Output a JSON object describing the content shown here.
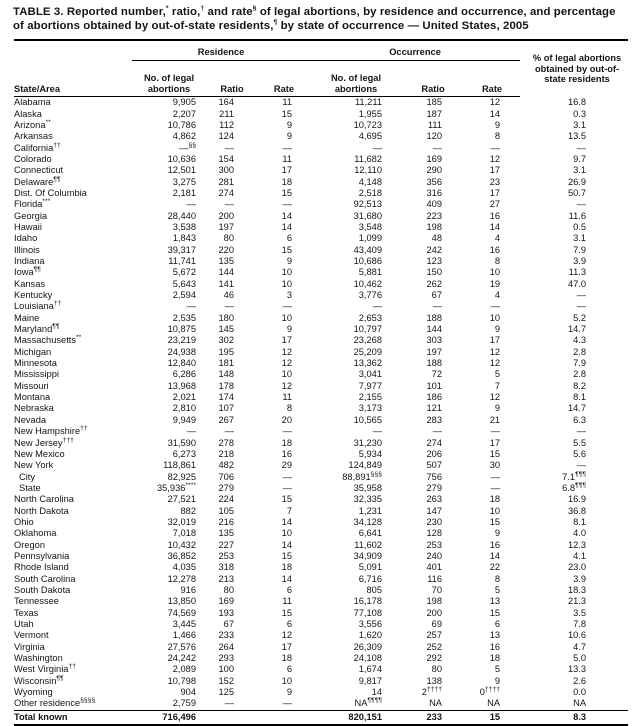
{
  "page": {
    "title": "TABLE 3. Reported number,^{*} ratio,^{†} and rate^{§} of legal abortions, by residence and occurrence, and percentage of abortions obtained by out-of-state residents,^{¶} by state of occurrence — United States, 2005"
  },
  "table": {
    "groups": {
      "residence": "Residence",
      "occurrence": "Occurrence",
      "pct": "% of legal abortions obtained by out-of-state residents"
    },
    "headers": {
      "state": "State/Area",
      "no_abortions": "No. of legal abortions",
      "ratio": "Ratio",
      "rate": "Rate"
    },
    "rows": [
      {
        "state": "Alabama",
        "cells": [
          "9,905",
          "164",
          "11",
          "11,211",
          "185",
          "12",
          "16.8"
        ]
      },
      {
        "state": "Alaska",
        "cells": [
          "2,207",
          "211",
          "15",
          "1,955",
          "187",
          "14",
          "0.3"
        ]
      },
      {
        "state": "Arizona^{**}",
        "cells": [
          "10,786",
          "112",
          "9",
          "10,723",
          "111",
          "9",
          "3.1"
        ]
      },
      {
        "state": "Arkansas",
        "cells": [
          "4,862",
          "124",
          "9",
          "4,695",
          "120",
          "8",
          "13.5"
        ]
      },
      {
        "state": "California^{††}",
        "cells": [
          "—^{§§}",
          "—",
          "—",
          "—",
          "—",
          "—",
          "—"
        ]
      },
      {
        "state": "Colorado",
        "cells": [
          "10,636",
          "154",
          "11",
          "11,682",
          "169",
          "12",
          "9.7"
        ]
      },
      {
        "state": "Connecticut",
        "cells": [
          "12,501",
          "300",
          "17",
          "12,110",
          "290",
          "17",
          "3.1"
        ]
      },
      {
        "state": "Delaware^{¶¶}",
        "cells": [
          "3,275",
          "281",
          "18",
          "4,148",
          "356",
          "23",
          "26.9"
        ]
      },
      {
        "state": "Dist. Of Columbia",
        "cells": [
          "2,181",
          "274",
          "15",
          "2,518",
          "316",
          "17",
          "50.7"
        ]
      },
      {
        "state": "Florida^{***}",
        "cells": [
          "—",
          "—",
          "—",
          "92,513",
          "409",
          "27",
          "—"
        ]
      },
      {
        "state": "Georgia",
        "cells": [
          "28,440",
          "200",
          "14",
          "31,680",
          "223",
          "16",
          "11.6"
        ]
      },
      {
        "state": "Hawaii",
        "cells": [
          "3,538",
          "197",
          "14",
          "3,548",
          "198",
          "14",
          "0.5"
        ]
      },
      {
        "state": "Idaho",
        "cells": [
          "1,843",
          "80",
          "6",
          "1,099",
          "48",
          "4",
          "3.1"
        ]
      },
      {
        "state": "Illinois",
        "cells": [
          "39,317",
          "220",
          "15",
          "43,409",
          "242",
          "16",
          "7.9"
        ]
      },
      {
        "state": "Indiana",
        "cells": [
          "11,741",
          "135",
          "9",
          "10,686",
          "123",
          "8",
          "3.9"
        ]
      },
      {
        "state": "Iowa^{¶¶}",
        "cells": [
          "5,672",
          "144",
          "10",
          "5,881",
          "150",
          "10",
          "11.3"
        ]
      },
      {
        "state": "Kansas",
        "cells": [
          "5,643",
          "141",
          "10",
          "10,462",
          "262",
          "19",
          "47.0"
        ]
      },
      {
        "state": "Kentucky",
        "cells": [
          "2,594",
          "46",
          "3",
          "3,776",
          "67",
          "4",
          "—"
        ]
      },
      {
        "state": "Louisiana^{††}",
        "cells": [
          "—",
          "—",
          "—",
          "—",
          "—",
          "—",
          "—"
        ]
      },
      {
        "state": "Maine",
        "cells": [
          "2,535",
          "180",
          "10",
          "2,653",
          "188",
          "10",
          "5.2"
        ]
      },
      {
        "state": "Maryland^{¶¶}",
        "cells": [
          "10,875",
          "145",
          "9",
          "10,797",
          "144",
          "9",
          "14.7"
        ]
      },
      {
        "state": "Massachusetts^{**}",
        "cells": [
          "23,219",
          "302",
          "17",
          "23,268",
          "303",
          "17",
          "4.3"
        ]
      },
      {
        "state": "Michigan",
        "cells": [
          "24,938",
          "195",
          "12",
          "25,209",
          "197",
          "12",
          "2.8"
        ]
      },
      {
        "state": "Minnesota",
        "cells": [
          "12,840",
          "181",
          "12",
          "13,362",
          "188",
          "12",
          "7.9"
        ]
      },
      {
        "state": "Mississippi",
        "cells": [
          "6,286",
          "148",
          "10",
          "3,041",
          "72",
          "5",
          "2.8"
        ]
      },
      {
        "state": "Missouri",
        "cells": [
          "13,968",
          "178",
          "12",
          "7,977",
          "101",
          "7",
          "8.2"
        ]
      },
      {
        "state": "Montana",
        "cells": [
          "2,021",
          "174",
          "11",
          "2,155",
          "186",
          "12",
          "8.1"
        ]
      },
      {
        "state": "Nebraska",
        "cells": [
          "2,810",
          "107",
          "8",
          "3,173",
          "121",
          "9",
          "14.7"
        ]
      },
      {
        "state": "Nevada",
        "cells": [
          "9,949",
          "267",
          "20",
          "10,565",
          "283",
          "21",
          "6.3"
        ]
      },
      {
        "state": "New Hampshire^{††}",
        "cells": [
          "—",
          "—",
          "—",
          "—",
          "—",
          "—",
          "—"
        ]
      },
      {
        "state": "New Jersey^{†††}",
        "cells": [
          "31,590",
          "278",
          "18",
          "31,230",
          "274",
          "17",
          "5.5"
        ]
      },
      {
        "state": "New Mexico",
        "cells": [
          "6,273",
          "218",
          "16",
          "5,934",
          "206",
          "15",
          "5.6"
        ]
      },
      {
        "state": "New York",
        "cells": [
          "118,861",
          "482",
          "29",
          "124,849",
          "507",
          "30",
          "—"
        ]
      },
      {
        "state": "City",
        "indent": true,
        "cells": [
          "82,925",
          "706",
          "—",
          "88,891^{§§§}",
          "756",
          "—",
          "7.1^{¶¶¶}"
        ]
      },
      {
        "state": "State",
        "indent": true,
        "cells": [
          "35,936^{****}",
          "279",
          "—",
          "35,958",
          "279",
          "—",
          "6.8^{¶¶¶}"
        ]
      },
      {
        "state": "North Carolina",
        "cells": [
          "27,521",
          "224",
          "15",
          "32,335",
          "263",
          "18",
          "16.9"
        ]
      },
      {
        "state": "North Dakota",
        "cells": [
          "882",
          "105",
          "7",
          "1,231",
          "147",
          "10",
          "36.8"
        ]
      },
      {
        "state": "Ohio",
        "cells": [
          "32,019",
          "216",
          "14",
          "34,128",
          "230",
          "15",
          "8.1"
        ]
      },
      {
        "state": "Oklahoma",
        "cells": [
          "7,018",
          "135",
          "10",
          "6,641",
          "128",
          "9",
          "4.0"
        ]
      },
      {
        "state": "Oregon",
        "cells": [
          "10,432",
          "227",
          "14",
          "11,602",
          "253",
          "16",
          "12.3"
        ]
      },
      {
        "state": "Pennsylvania",
        "cells": [
          "36,852",
          "253",
          "15",
          "34,909",
          "240",
          "14",
          "4.1"
        ]
      },
      {
        "state": "Rhode Island",
        "cells": [
          "4,035",
          "318",
          "18",
          "5,091",
          "401",
          "22",
          "23.0"
        ]
      },
      {
        "state": "South Carolina",
        "cells": [
          "12,278",
          "213",
          "14",
          "6,716",
          "116",
          "8",
          "3.9"
        ]
      },
      {
        "state": "South Dakota",
        "cells": [
          "916",
          "80",
          "6",
          "805",
          "70",
          "5",
          "18.3"
        ]
      },
      {
        "state": "Tennessee",
        "cells": [
          "13,850",
          "169",
          "11",
          "16,178",
          "198",
          "13",
          "21.3"
        ]
      },
      {
        "state": "Texas",
        "cells": [
          "74,569",
          "193",
          "15",
          "77,108",
          "200",
          "15",
          "3.5"
        ]
      },
      {
        "state": "Utah",
        "cells": [
          "3,445",
          "67",
          "6",
          "3,556",
          "69",
          "6",
          "7.8"
        ]
      },
      {
        "state": "Vermont",
        "cells": [
          "1,466",
          "233",
          "12",
          "1,620",
          "257",
          "13",
          "10.6"
        ]
      },
      {
        "state": "Virginia",
        "cells": [
          "27,576",
          "264",
          "17",
          "26,309",
          "252",
          "16",
          "4.7"
        ]
      },
      {
        "state": "Washington",
        "cells": [
          "24,242",
          "293",
          "18",
          "24,108",
          "292",
          "18",
          "5.0"
        ]
      },
      {
        "state": "West Virginia^{††}",
        "cells": [
          "2,089",
          "100",
          "6",
          "1,674",
          "80",
          "5",
          "13.3"
        ]
      },
      {
        "state": "Wisconsin^{¶¶}",
        "cells": [
          "10,798",
          "152",
          "10",
          "9,817",
          "138",
          "9",
          "2.6"
        ]
      },
      {
        "state": "Wyoming",
        "cells": [
          "904",
          "125",
          "9",
          "14",
          "2^{††††}",
          "0^{††††}",
          "0.0"
        ]
      },
      {
        "state": "Other residence^{§§§§}",
        "cells": [
          "2,759",
          "—",
          "—",
          "NA^{¶¶¶¶}",
          "NA",
          "NA",
          "NA"
        ]
      },
      {
        "state": "Total known",
        "total": true,
        "cells": [
          "716,496",
          "",
          "",
          "820,151",
          "233",
          "15",
          "8.3"
        ]
      }
    ]
  }
}
